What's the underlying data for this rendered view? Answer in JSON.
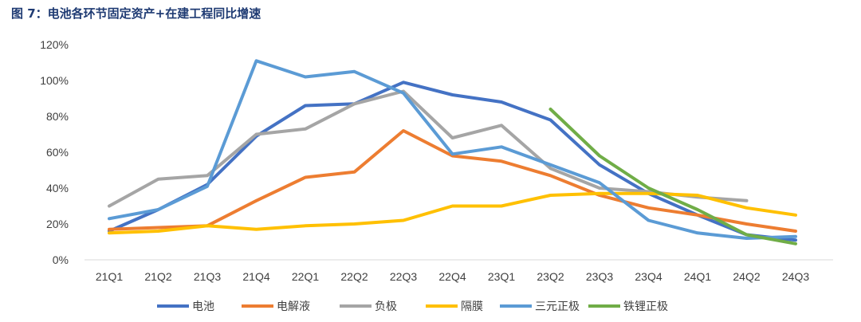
{
  "figure_title": "图 7：电池各环节固定资产+在建工程同比增速",
  "chart_data": {
    "type": "line",
    "title": "",
    "xlabel": "",
    "ylabel": "",
    "categories": [
      "21Q1",
      "21Q2",
      "21Q3",
      "21Q4",
      "22Q1",
      "22Q2",
      "22Q3",
      "22Q4",
      "23Q1",
      "23Q2",
      "23Q3",
      "23Q4",
      "24Q1",
      "24Q2",
      "24Q3"
    ],
    "ylim": [
      0,
      120
    ],
    "yticks": [
      0,
      20,
      40,
      60,
      80,
      100,
      120
    ],
    "ytick_labels": [
      "0%",
      "20%",
      "40%",
      "60%",
      "80%",
      "100%",
      "120%"
    ],
    "grid": false,
    "legend_position": "bottom",
    "series": [
      {
        "name": "电池",
        "color": "#4472c4",
        "values": [
          16,
          28,
          42,
          69,
          86,
          87,
          99,
          92,
          88,
          78,
          53,
          37,
          25,
          14,
          11
        ]
      },
      {
        "name": "电解液",
        "color": "#ed7d31",
        "values": [
          17,
          18,
          19,
          33,
          46,
          49,
          72,
          58,
          55,
          47,
          36,
          29,
          25,
          20,
          16
        ]
      },
      {
        "name": "负极",
        "color": "#a5a5a5",
        "values": [
          30,
          45,
          47,
          70,
          73,
          87,
          94,
          68,
          75,
          51,
          40,
          38,
          35,
          33,
          null
        ]
      },
      {
        "name": "隔膜",
        "color": "#ffc000",
        "values": [
          15,
          16,
          19,
          17,
          19,
          20,
          22,
          30,
          30,
          36,
          37,
          37,
          36,
          29,
          25
        ]
      },
      {
        "name": "三元正极",
        "color": "#5b9bd5",
        "values": [
          23,
          28,
          41,
          111,
          102,
          105,
          93,
          59,
          63,
          53,
          43,
          22,
          15,
          12,
          13
        ]
      },
      {
        "name": "铁锂正极",
        "color": "#70ad47",
        "values": [
          null,
          null,
          null,
          null,
          null,
          null,
          null,
          null,
          null,
          84,
          58,
          40,
          28,
          14,
          9
        ]
      }
    ]
  }
}
